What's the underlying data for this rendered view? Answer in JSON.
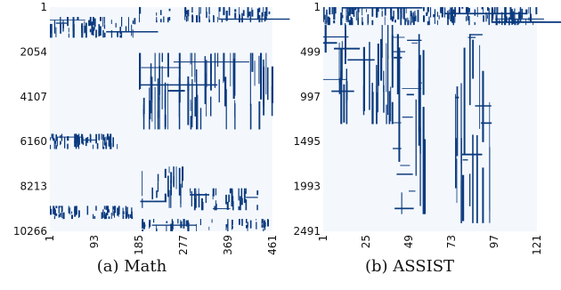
{
  "chart_data": [
    {
      "type": "heatmap",
      "caption": "(a)  Math",
      "colors": {
        "filled": "#0b3a7e",
        "empty": "#f4f8fd"
      },
      "yticks": [
        "1",
        "2054",
        "4107",
        "6160",
        "8213",
        "10266"
      ],
      "xticks": [
        "1",
        "93",
        "185",
        "277",
        "369",
        "461"
      ],
      "n_rows": 10266,
      "n_cols": 461,
      "dense_blocks": [
        {
          "rows": [
            1,
            700
          ],
          "cols": [
            185,
            461
          ],
          "density": 0.35
        },
        {
          "rows": [
            450,
            1400
          ],
          "cols": [
            1,
            180
          ],
          "density": 0.55
        },
        {
          "rows": [
            2100,
            5600
          ],
          "cols": [
            185,
            461
          ],
          "density": 0.45
        },
        {
          "rows": [
            5800,
            6500
          ],
          "cols": [
            1,
            140
          ],
          "density": 0.6
        },
        {
          "rows": [
            7300,
            9200
          ],
          "cols": [
            185,
            280
          ],
          "density": 0.55
        },
        {
          "rows": [
            8300,
            9300
          ],
          "cols": [
            290,
            430
          ],
          "density": 0.5
        },
        {
          "rows": [
            9100,
            9700
          ],
          "cols": [
            1,
            170
          ],
          "density": 0.55
        },
        {
          "rows": [
            9700,
            10266
          ],
          "cols": [
            185,
            461
          ],
          "density": 0.3
        }
      ]
    },
    {
      "type": "heatmap",
      "caption": "(b)  ASSIST",
      "colors": {
        "filled": "#0b3a7e",
        "empty": "#f4f8fd"
      },
      "yticks": [
        "1",
        "499",
        "997",
        "1495",
        "1993",
        "2491"
      ],
      "xticks": [
        "1",
        "25",
        "49",
        "73",
        "97",
        "121"
      ],
      "n_rows": 2491,
      "n_cols": 121,
      "dense_blocks": [
        {
          "rows": [
            1,
            200
          ],
          "cols": [
            1,
            121
          ],
          "density": 0.7
        },
        {
          "rows": [
            200,
            1300
          ],
          "cols": [
            1,
            40
          ],
          "density": 0.5
        },
        {
          "rows": [
            300,
            2300
          ],
          "cols": [
            40,
            60
          ],
          "density": 0.5
        },
        {
          "rows": [
            300,
            2400
          ],
          "cols": [
            75,
            95
          ],
          "density": 0.45
        }
      ]
    }
  ]
}
